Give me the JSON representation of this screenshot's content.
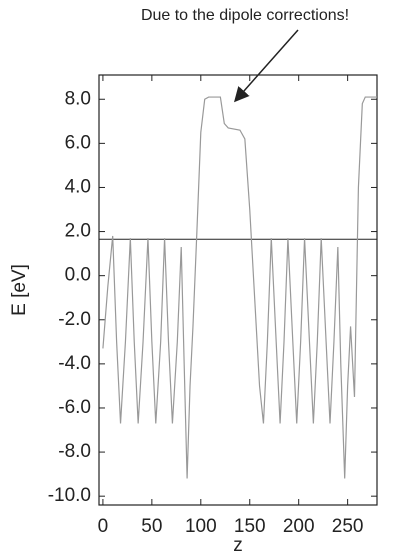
{
  "chart_data": {
    "type": "line",
    "annotation": "Due to the dipole corrections!",
    "xlabel": "z",
    "ylabel": "E [eV]",
    "x": [
      0,
      5,
      10,
      14,
      18,
      23,
      28,
      32,
      36,
      41,
      46,
      50,
      54,
      59,
      63,
      67,
      71,
      76,
      80,
      83,
      86,
      89,
      92,
      96,
      100,
      104,
      108,
      120,
      124,
      128,
      140,
      145,
      150,
      155,
      160,
      164,
      168,
      172,
      177,
      181,
      185,
      189,
      194,
      198,
      202,
      206,
      211,
      215,
      219,
      223,
      228,
      232,
      236,
      240,
      243,
      247,
      250,
      253,
      257,
      261,
      265,
      268,
      280
    ],
    "series": [
      {
        "color": "#999999",
        "values": [
          -3.3,
          -0.5,
          1.8,
          -3,
          -6.7,
          -3,
          1.7,
          -3,
          -6.7,
          -3,
          1.7,
          -3,
          -6.7,
          -3,
          1.7,
          -3,
          -6.7,
          -3,
          1.3,
          -4,
          -9.2,
          -5,
          -2.3,
          2,
          6.5,
          8.0,
          8.1,
          8.1,
          6.9,
          6.7,
          6.6,
          6.2,
          3,
          -1,
          -5,
          -6.7,
          -3,
          1.7,
          -3,
          -6.7,
          -3,
          1.7,
          -3,
          -6.7,
          -3,
          1.7,
          -3,
          -6.7,
          -3,
          1.7,
          -3,
          -6.7,
          -3,
          1.3,
          -4,
          -9.2,
          -5,
          -2.3,
          -5.5,
          4,
          7.8,
          8.1,
          8.1
        ]
      }
    ],
    "reference_line": 1.65,
    "xlim": [
      -4,
      280
    ],
    "xticks": [
      0,
      50,
      100,
      150,
      200,
      250
    ],
    "ylim": [
      -10.4,
      9.1
    ],
    "yticks": [
      {
        "value": 8,
        "label": "8.0"
      },
      {
        "value": 6,
        "label": "6.0"
      },
      {
        "value": 4,
        "label": "4.0"
      },
      {
        "value": 2,
        "label": "2.0"
      },
      {
        "value": 0,
        "label": "0.0"
      },
      {
        "value": -2,
        "label": "-2.0"
      },
      {
        "value": -4,
        "label": "-4.0"
      },
      {
        "value": -6,
        "label": "-6.0"
      },
      {
        "value": -8,
        "label": "-8.0"
      },
      {
        "value": -10,
        "label": "-10.0"
      }
    ]
  }
}
